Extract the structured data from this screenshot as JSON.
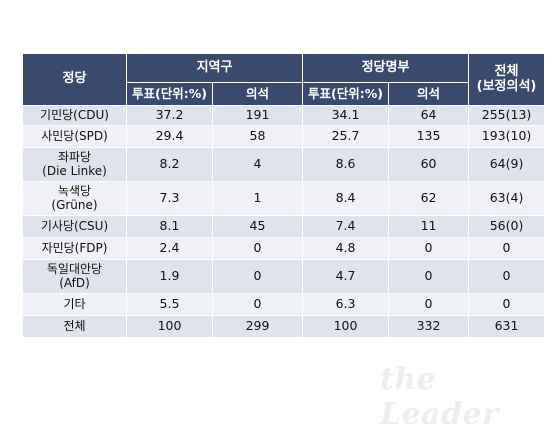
{
  "header": {
    "party": "정당",
    "district": "지역구",
    "list": "정당명부",
    "total_line1": "전체",
    "total_line2": "(보정의석)",
    "district_vote": "투표(단위:%)",
    "district_seats": "의석",
    "list_vote": "투표(단위:%)",
    "list_seats": "의석"
  },
  "rows": [
    {
      "party": "기민당(CDU)",
      "district_vote": "37.2",
      "district_seats": "191",
      "list_vote": "34.1",
      "list_seats": "64",
      "total": "255(13)"
    },
    {
      "party": "사민당(SPD)",
      "district_vote": "29.4",
      "district_seats": "58",
      "list_vote": "25.7",
      "list_seats": "135",
      "total": "193(10)"
    },
    {
      "party": "좌파당",
      "party_sub": "(Die Linke)",
      "district_vote": "8.2",
      "district_seats": "4",
      "list_vote": "8.6",
      "list_seats": "60",
      "total": "64(9)"
    },
    {
      "party": "녹색당",
      "party_sub": "(Grüne)",
      "district_vote": "7.3",
      "district_seats": "1",
      "list_vote": "8.4",
      "list_seats": "62",
      "total": "63(4)"
    },
    {
      "party": "기사당(CSU)",
      "district_vote": "8.1",
      "district_seats": "45",
      "list_vote": "7.4",
      "list_seats": "11",
      "total": "56(0)"
    },
    {
      "party": "자민당(FDP)",
      "district_vote": "2.4",
      "district_seats": "0",
      "list_vote": "4.8",
      "list_seats": "0",
      "total": "0"
    },
    {
      "party": "독일대안당",
      "party_sub": "(AfD)",
      "district_vote": "1.9",
      "district_seats": "0",
      "list_vote": "4.7",
      "list_seats": "0",
      "total": "0"
    },
    {
      "party": "기타",
      "district_vote": "5.5",
      "district_seats": "0",
      "list_vote": "6.3",
      "list_seats": "0",
      "total": "0"
    },
    {
      "party": "전체",
      "district_vote": "100",
      "district_seats": "299",
      "list_vote": "100",
      "list_seats": "332",
      "total": "631"
    }
  ],
  "watermark_text": "the Leader",
  "colors": {
    "header_bg": "#3a4a6e",
    "row_bg": "#dfe3ec",
    "row_alt_bg": "#eff1f6"
  }
}
